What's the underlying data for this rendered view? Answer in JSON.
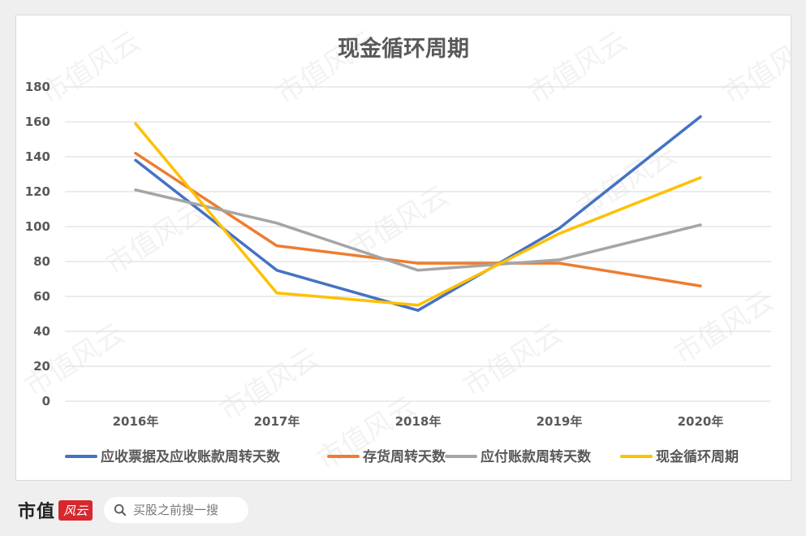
{
  "chart_data": {
    "type": "line",
    "title": "现金循环周期",
    "xlabel": "",
    "ylabel": "",
    "categories": [
      "2016年",
      "2017年",
      "2018年",
      "2019年",
      "2020年"
    ],
    "ylim": [
      0,
      180
    ],
    "yticks": [
      0,
      20,
      40,
      60,
      80,
      100,
      120,
      140,
      160,
      180
    ],
    "grid": true,
    "legend": "bottom",
    "series": [
      {
        "name": "应收票据及应收账款周转天数",
        "color": "#4472c4",
        "values": [
          138,
          75,
          52,
          99,
          163
        ]
      },
      {
        "name": "存货周转天数",
        "color": "#ed7d31",
        "values": [
          142,
          89,
          79,
          79,
          66
        ]
      },
      {
        "name": "应付账款周转天数",
        "color": "#a5a5a5",
        "values": [
          121,
          102,
          75,
          81,
          101
        ]
      },
      {
        "name": "现金循环周期",
        "color": "#ffc000",
        "values": [
          159,
          62,
          55,
          96,
          128
        ]
      }
    ]
  },
  "watermark": "市值风云",
  "footer": {
    "logo_text": "市值",
    "logo_badge": "风云",
    "search_placeholder": "买股之前搜一搜",
    "search_icon": "magnifier-icon"
  }
}
